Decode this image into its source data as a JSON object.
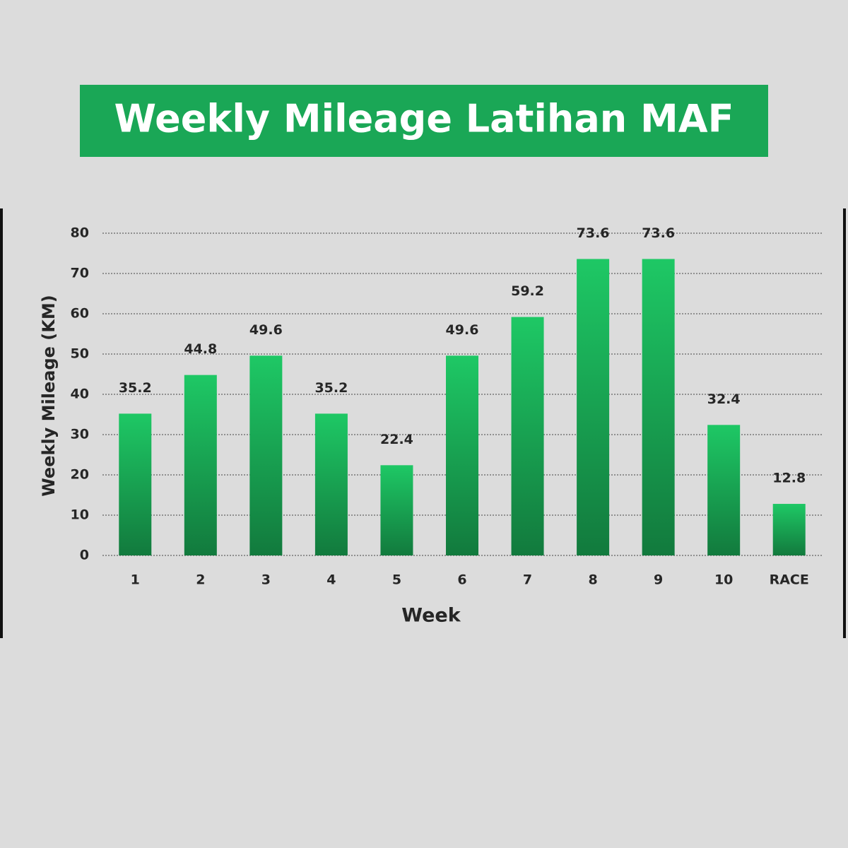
{
  "chart_data": {
    "type": "bar",
    "title": "Weekly Mileage Latihan MAF",
    "x_label": "Week",
    "y_label": "Weekly Mileage (KM)",
    "categories": [
      "1",
      "2",
      "3",
      "4",
      "5",
      "6",
      "7",
      "8",
      "9",
      "10",
      "RACE"
    ],
    "values": [
      35.2,
      44.8,
      49.6,
      35.2,
      22.4,
      49.6,
      59.2,
      73.6,
      73.6,
      32.4,
      12.8
    ],
    "color": "#1ec865",
    "ylim": [
      0,
      80
    ],
    "yticks": [
      0,
      10,
      20,
      30,
      40,
      50,
      60,
      70,
      80
    ],
    "grid": true
  }
}
